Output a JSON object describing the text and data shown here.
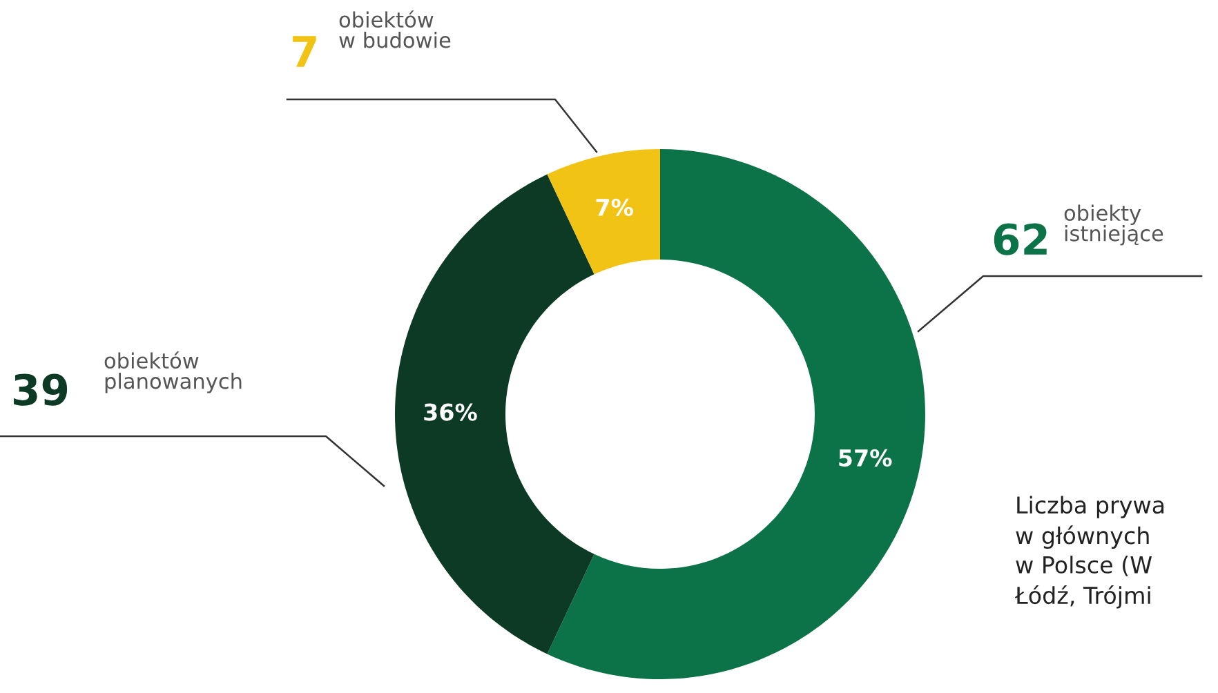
{
  "chart_data": {
    "type": "donut",
    "categories": [
      "62 obiekty istniejące",
      "39 obiektów planowanych",
      "7 obiektów w budowie"
    ],
    "values": [
      57,
      36,
      7
    ],
    "colors": [
      "#0c7248",
      "#0d3a24",
      "#f0c314"
    ],
    "value_labels": [
      "57%",
      "36%",
      "7%"
    ],
    "annotations": [
      "Liczba prywa\nw głównych\nw Polsce (W\nŁódź, Trójmi"
    ]
  }
}
